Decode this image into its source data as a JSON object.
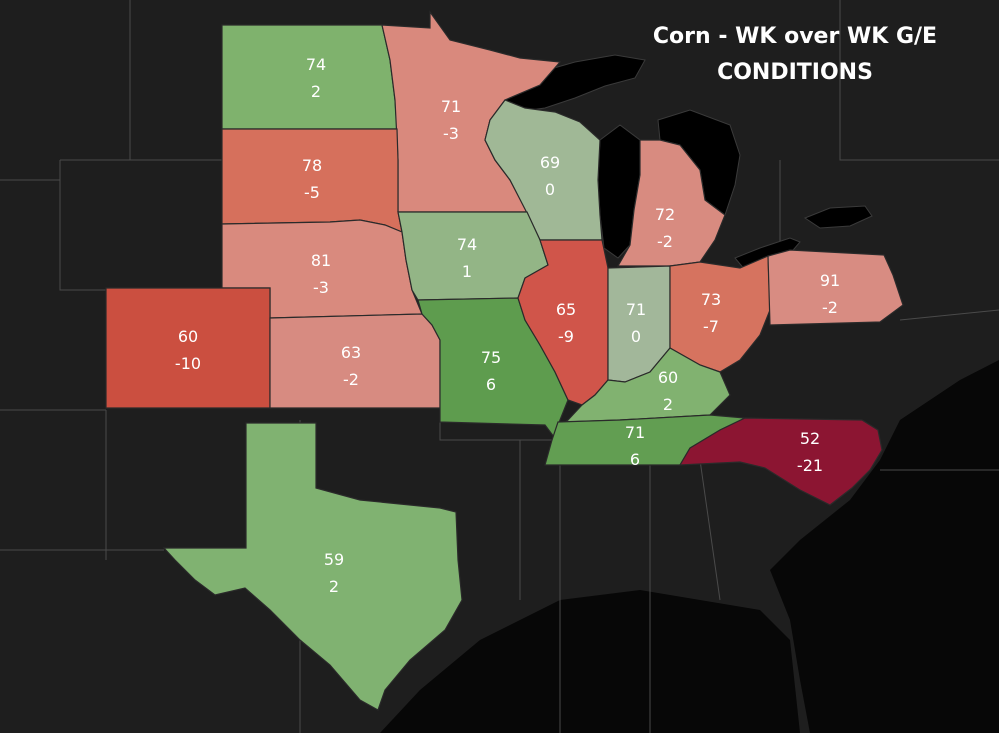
{
  "title": {
    "line1": "Corn - WK over WK G/E",
    "line2": "CONDITIONS"
  },
  "states": [
    {
      "key": "nd",
      "condition": "74",
      "change": "2",
      "color": "#7fb26d"
    },
    {
      "key": "mn",
      "condition": "71",
      "change": "-3",
      "color": "#d9897d"
    },
    {
      "key": "sd",
      "condition": "78",
      "change": "-5",
      "color": "#d6705c"
    },
    {
      "key": "wi",
      "condition": "69",
      "change": "0",
      "color": "#a0b896"
    },
    {
      "key": "mi",
      "condition": "72",
      "change": "-2",
      "color": "#d88b80"
    },
    {
      "key": "ne",
      "condition": "81",
      "change": "-3",
      "color": "#d98a7e"
    },
    {
      "key": "ia",
      "condition": "74",
      "change": "1",
      "color": "#93b586"
    },
    {
      "key": "co",
      "condition": "60",
      "change": "-10",
      "color": "#cb4f40"
    },
    {
      "key": "ks",
      "condition": "63",
      "change": "-2",
      "color": "#d78b81"
    },
    {
      "key": "mo",
      "condition": "75",
      "change": "6",
      "color": "#5e9c4e"
    },
    {
      "key": "il",
      "condition": "65",
      "change": "-9",
      "color": "#d0554a"
    },
    {
      "key": "in",
      "condition": "71",
      "change": "0",
      "color": "#a2b79a"
    },
    {
      "key": "oh",
      "condition": "73",
      "change": "-7",
      "color": "#d6735f"
    },
    {
      "key": "pa",
      "condition": "91",
      "change": "-2",
      "color": "#d88c82"
    },
    {
      "key": "ky",
      "condition": "60",
      "change": "2",
      "color": "#81b270"
    },
    {
      "key": "tn",
      "condition": "71",
      "change": "6",
      "color": "#629e52"
    },
    {
      "key": "nc",
      "condition": "52",
      "change": "-21",
      "color": "#8c1532"
    },
    {
      "key": "tx",
      "condition": "59",
      "change": "2",
      "color": "#80b271"
    }
  ]
}
